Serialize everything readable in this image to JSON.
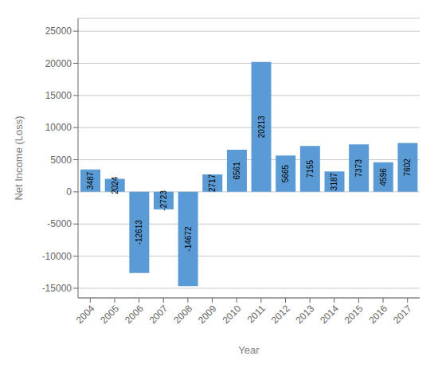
{
  "chart_data": {
    "type": "bar",
    "categories": [
      "2004",
      "2005",
      "2006",
      "2007",
      "2008",
      "2009",
      "2010",
      "2011",
      "2012",
      "2013",
      "2014",
      "2015",
      "2016",
      "2017"
    ],
    "values": [
      3487,
      2024,
      -12613,
      -2723,
      -14672,
      2717,
      6561,
      20213,
      5665,
      7155,
      3187,
      7373,
      4596,
      7602
    ],
    "color": "#5B9BD5",
    "xlabel": "Year",
    "ylabel": "Net Income (Loss)",
    "ylim": [
      -16500,
      27000
    ],
    "yticks": [
      -15000,
      -10000,
      -5000,
      0,
      5000,
      10000,
      15000,
      20000,
      25000
    ],
    "grid": true,
    "data_labels": true
  }
}
